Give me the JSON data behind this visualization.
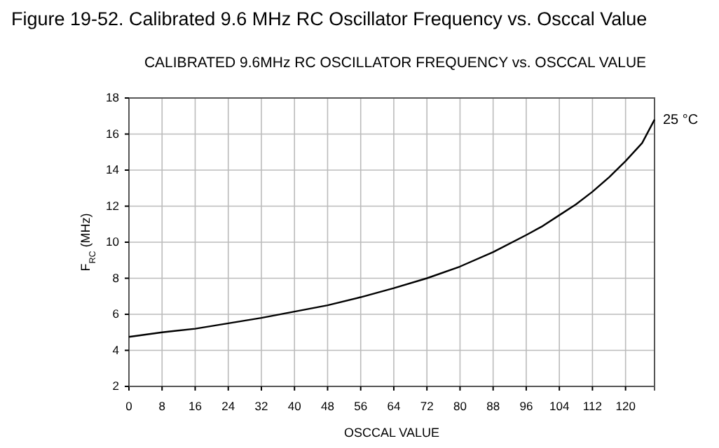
{
  "chart_data": {
    "type": "line",
    "title": "Figure 19-52. Calibrated 9.6 MHz RC Oscillator Frequency vs. Osccal Value",
    "subtitle": "CALIBRATED 9.6MHz RC OSCILLATOR FREQUENCY vs. OSCCAL VALUE",
    "xlabel": "OSCCAL VALUE",
    "ylabel": "F$_{RC}$ (MHz)",
    "xlim": [
      0,
      127
    ],
    "xticks": [
      0,
      8,
      16,
      24,
      32,
      40,
      48,
      56,
      64,
      72,
      80,
      88,
      96,
      104,
      112,
      120
    ],
    "ylim": [
      2,
      18
    ],
    "yticks": [
      2,
      4,
      6,
      8,
      10,
      12,
      14,
      16,
      18
    ],
    "grid": true,
    "legend": false,
    "marker": "none",
    "line_style": "solid",
    "series": [
      {
        "name": "25 °C",
        "color": "#000000",
        "x": [
          0,
          8,
          16,
          24,
          32,
          40,
          48,
          56,
          64,
          72,
          80,
          88,
          96,
          100,
          104,
          108,
          112,
          116,
          120,
          124,
          127
        ],
        "values": [
          4.75,
          5.0,
          5.2,
          5.5,
          5.8,
          6.15,
          6.5,
          6.95,
          7.45,
          8.0,
          8.65,
          9.45,
          10.4,
          10.9,
          11.5,
          12.1,
          12.8,
          13.6,
          14.5,
          15.5,
          16.8
        ]
      }
    ]
  }
}
